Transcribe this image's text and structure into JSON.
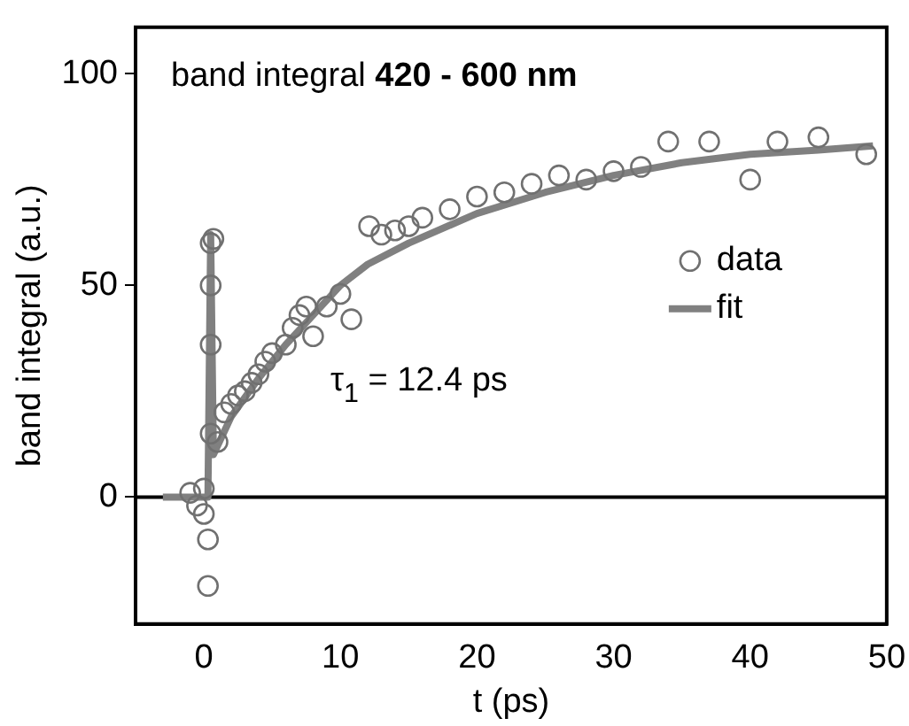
{
  "chart_data": {
    "type": "scatter",
    "xlabel": "t (ps)",
    "ylabel": "band integral (a.u.)",
    "annotations": [
      "band integral",
      "420 - 600 nm",
      "τ$_{1}$ = 12.4 ps"
    ],
    "xlim": [
      -5,
      50
    ],
    "ylim": [
      -30,
      111
    ],
    "xticks": [
      0,
      10,
      20,
      30,
      40,
      50
    ],
    "yticks": [
      0,
      50,
      100
    ],
    "grid": false,
    "legend": "right",
    "marker": "circle",
    "ref_lines": [
      {
        "axis": "y",
        "value": 0,
        "color": "#000000"
      }
    ],
    "series": [
      {
        "name": "data",
        "color": "#707070",
        "x": [
          -1,
          -0.5,
          0,
          0,
          0.3,
          0.3,
          0.5,
          0.5,
          0.5,
          0.7,
          0.5,
          1,
          1.5,
          2,
          2.5,
          3,
          3.5,
          4,
          4.5,
          5,
          6,
          6.5,
          7,
          7.5,
          8,
          9,
          10,
          10.8,
          12.1,
          13,
          14,
          15,
          16,
          18,
          20,
          22,
          24,
          26,
          28,
          30,
          32,
          34,
          37,
          40,
          42,
          45,
          48.5
        ],
        "values": [
          1,
          -2,
          2,
          -4,
          -10,
          -21,
          36,
          50,
          60,
          61,
          15,
          13,
          20,
          22,
          24,
          25,
          27,
          29,
          32,
          34,
          36,
          40,
          43,
          45,
          38,
          45,
          48,
          42,
          64,
          62,
          63,
          64,
          66,
          68,
          71,
          72,
          74,
          76,
          75,
          77,
          78,
          84,
          84,
          75,
          84,
          85,
          81
        ]
      },
      {
        "name": "fit",
        "type": "line",
        "color": "#808080",
        "marker": "none",
        "x": [
          -3,
          0.3,
          0.5,
          0.7,
          2,
          4,
          6,
          8,
          10,
          12,
          15,
          20,
          25,
          30,
          35,
          40,
          45,
          49
        ],
        "values": [
          0,
          0,
          62,
          10,
          19,
          28,
          36,
          43,
          50,
          55,
          60,
          67,
          72,
          76,
          79,
          81,
          82,
          83
        ]
      }
    ]
  }
}
